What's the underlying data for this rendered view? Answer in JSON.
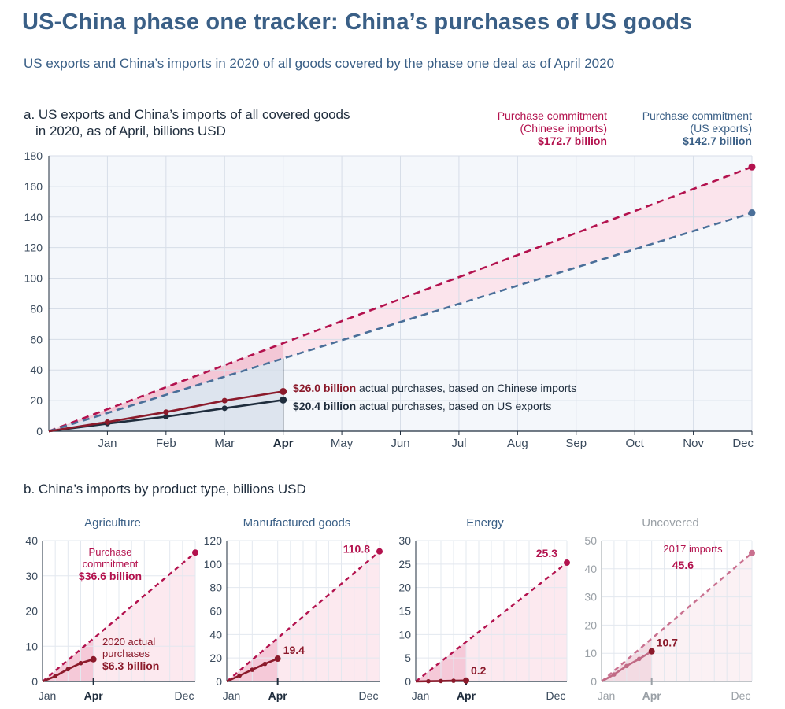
{
  "title": "US-China phase one tracker: China’s purchases of US goods",
  "subtitle": "US exports and China’s imports in 2020 of all goods covered by the phase one deal as of April 2020",
  "panel_a": {
    "title_line1": "a. US exports and China’s imports of all covered goods",
    "title_line2": "in 2020, as of April, billions USD",
    "commit_cn_l1": "Purchase commitment",
    "commit_cn_l2": "(Chinese imports)",
    "commit_cn_value": "$172.7 billion",
    "commit_us_l1": "Purchase commitment",
    "commit_us_l2": "(US exports)",
    "commit_us_value": "$142.7 billion",
    "label_cn_bold": "$26.0 billion",
    "label_cn_rest": " actual purchases, based on Chinese imports",
    "label_us_bold": "$20.4 billion",
    "label_us_rest": " actual purchases, based on US exports"
  },
  "panel_b": {
    "title": "b. China’s imports by product type, billions USD",
    "agri_commit_l1": "Purchase",
    "agri_commit_l2": "commitment",
    "agri_commit_value": "$36.6 billion",
    "agri_actual_l1": "2020 actual",
    "agri_actual_l2": "purchases",
    "agri_actual_value": "$6.3 billion",
    "unc_label": "2017 imports"
  },
  "colors": {
    "title_blue": "#3a5f86",
    "commitment_crimson": "#b3124e",
    "actual_cn": "#8b1a2b",
    "actual_us": "#1f2d3d",
    "us_commit_blue": "#4a6f99",
    "uncovered_gray": "#9aa0a6"
  },
  "chart_data": [
    {
      "type": "line",
      "x": [
        "Jan",
        "Feb",
        "Mar",
        "Apr",
        "May",
        "Jun",
        "Jul",
        "Aug",
        "Sep",
        "Oct",
        "Nov",
        "Dec"
      ],
      "ylim": [
        0,
        180
      ],
      "yticks": [
        0,
        20,
        40,
        60,
        80,
        100,
        120,
        140,
        160,
        180
      ],
      "grid": true,
      "series": [
        {
          "name": "Purchase commitment (Chinese imports)",
          "style": "dashed",
          "color": "#b3124e",
          "points": [
            [
              0,
              0
            ],
            [
              12,
              172.7
            ]
          ],
          "end_label": "$172.7 billion"
        },
        {
          "name": "Purchase commitment (US exports)",
          "style": "dashed",
          "color": "#4a6f99",
          "points": [
            [
              0,
              0
            ],
            [
              12,
              142.7
            ]
          ],
          "end_label": "$142.7 billion"
        },
        {
          "name": "actual purchases, based on Chinese imports",
          "style": "solid",
          "color": "#8b1a2b",
          "points": [
            [
              0,
              0
            ],
            [
              1,
              6
            ],
            [
              2,
              12.5
            ],
            [
              3,
              20
            ],
            [
              4,
              26.0
            ]
          ],
          "end_label": "$26.0 billion"
        },
        {
          "name": "actual purchases, based on US exports",
          "style": "solid",
          "color": "#1f2d3d",
          "points": [
            [
              0,
              0
            ],
            [
              1,
              5
            ],
            [
              2,
              9.5
            ],
            [
              3,
              15
            ],
            [
              4,
              20.4
            ]
          ],
          "end_label": "$20.4 billion"
        }
      ]
    },
    {
      "type": "line",
      "title": "Agriculture",
      "x_ticks": [
        "Jan",
        "Apr",
        "Dec"
      ],
      "ylim": [
        0,
        40
      ],
      "yticks": [
        0,
        10,
        20,
        30,
        40
      ],
      "commitment": {
        "end_value": 36.6,
        "label": "$36.6 billion"
      },
      "actual": {
        "points": [
          [
            0,
            0
          ],
          [
            1,
            1.5
          ],
          [
            2,
            3.5
          ],
          [
            3,
            5.2
          ],
          [
            4,
            6.3
          ]
        ],
        "label": "$6.3 billion"
      }
    },
    {
      "type": "line",
      "title": "Manufactured goods",
      "x_ticks": [
        "Jan",
        "Apr",
        "Dec"
      ],
      "ylim": [
        0,
        120
      ],
      "yticks": [
        0,
        20,
        40,
        60,
        80,
        100,
        120
      ],
      "commitment": {
        "end_value": 110.8,
        "label": "110.8"
      },
      "actual": {
        "points": [
          [
            0,
            0
          ],
          [
            1,
            5
          ],
          [
            2,
            10
          ],
          [
            3,
            15
          ],
          [
            4,
            19.4
          ]
        ],
        "label": "19.4"
      }
    },
    {
      "type": "line",
      "title": "Energy",
      "x_ticks": [
        "Jan",
        "Apr",
        "Dec"
      ],
      "ylim": [
        0,
        30
      ],
      "yticks": [
        0,
        5,
        10,
        15,
        20,
        25,
        30
      ],
      "commitment": {
        "end_value": 25.3,
        "label": "25.3"
      },
      "actual": {
        "points": [
          [
            0,
            0
          ],
          [
            1,
            0.05
          ],
          [
            2,
            0.1
          ],
          [
            3,
            0.15
          ],
          [
            4,
            0.2
          ]
        ],
        "label": "0.2"
      }
    },
    {
      "type": "line",
      "title": "Uncovered",
      "x_ticks": [
        "Jan",
        "Apr",
        "Dec"
      ],
      "ylim": [
        0,
        50
      ],
      "yticks": [
        0,
        10,
        20,
        30,
        40,
        50
      ],
      "commitment": {
        "end_value": 45.6,
        "label": "45.6"
      },
      "actual": {
        "points": [
          [
            0,
            0
          ],
          [
            1,
            2.5
          ],
          [
            2,
            5.5
          ],
          [
            3,
            8
          ],
          [
            4,
            10.7
          ]
        ],
        "label": "10.7"
      }
    }
  ]
}
